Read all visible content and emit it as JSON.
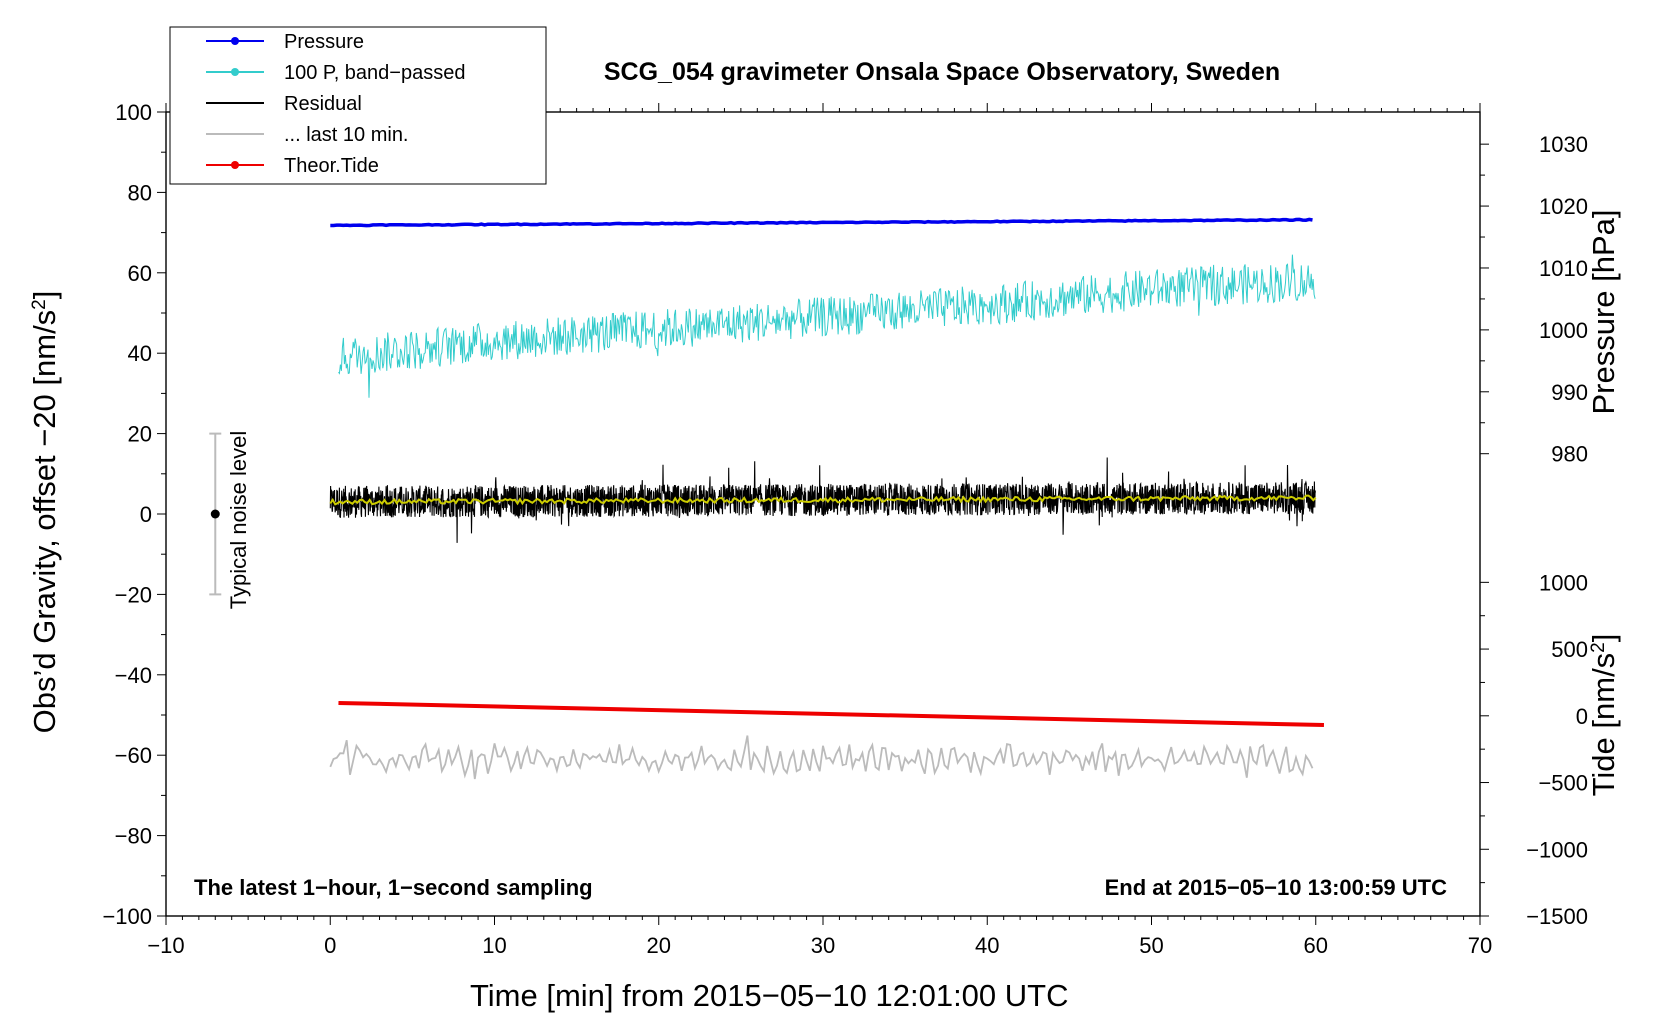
{
  "chart_data": {
    "type": "line",
    "title": "SCG_054 gravimeter Onsala Space Observatory, Sweden",
    "xlabel": "Time [min] from 2015−05−10 12:01:00 UTC",
    "ylabel_left": "Obs’d Gravity, offset −20 [nm/s",
    "ylabel_left_sup": "2",
    "ylabel_left_close": "]",
    "ylabel_pressure": "Pressure [hPa]",
    "ylabel_tide": "Tide [nm/s",
    "ylabel_tide_sup": "2",
    "ylabel_tide_close": "]",
    "xlim": [
      -10,
      70
    ],
    "ylim": [
      -100,
      100
    ],
    "x_ticks": [
      -10,
      0,
      10,
      20,
      30,
      40,
      50,
      60,
      70
    ],
    "x_tick_labels": [
      "−10",
      "0",
      "10",
      "20",
      "30",
      "40",
      "50",
      "60",
      "70"
    ],
    "y_ticks": [
      -100,
      -80,
      -60,
      -40,
      -20,
      0,
      20,
      40,
      60,
      80,
      100
    ],
    "y_tick_labels": [
      "−100",
      "−80",
      "−60",
      "−40",
      "−20",
      "0",
      "20",
      "40",
      "60",
      "80",
      "100"
    ],
    "pressure_axis": {
      "ticks": [
        980,
        990,
        1000,
        1010,
        1020,
        1030
      ],
      "tick_labels": [
        "980",
        "990",
        "1000",
        "1010",
        "1020",
        "1030"
      ],
      "left_value_at_tick": {
        "980": 15,
        "1030": 92
      }
    },
    "tide_axis": {
      "ticks": [
        -1500,
        -1000,
        -500,
        0,
        500,
        1000
      ],
      "tick_labels": [
        "−1500",
        "−1000",
        "−500",
        "0",
        "500",
        "1000"
      ],
      "left_value_at_tick": {
        "-1500": -100,
        "1000": -17
      }
    },
    "legend": {
      "location": "top-left",
      "entries": [
        {
          "label": "Pressure",
          "color": "#0000ee",
          "marker": true
        },
        {
          "label": "100 P, band−passed",
          "color": "#33cccc",
          "marker": true
        },
        {
          "label": "Residual",
          "color": "#000000",
          "marker": false
        },
        {
          "label": "... last 10 min.",
          "color": "#bbbbbb",
          "marker": false
        },
        {
          "label": "Theor.Tide",
          "color": "#ee0000",
          "marker": true
        }
      ]
    },
    "annotations": {
      "left_note": "The latest 1−hour, 1−second sampling",
      "right_note": "End at 2015−05−10 13:00:59 UTC",
      "noise_label": "Typical noise level"
    },
    "noise_bar": {
      "x": -7,
      "center": 0,
      "low": -20,
      "high": 20
    },
    "series": [
      {
        "name": "Pressure",
        "color": "#0000ee",
        "x_start": 0,
        "x_end": 60,
        "y_start": 71.8,
        "y_end": 73.2,
        "noise": 0.2
      },
      {
        "name": "100 P, band-passed",
        "color": "#33cccc",
        "x_start": 0.5,
        "x_end": 60,
        "trend": [
          [
            0.5,
            39
          ],
          [
            10,
            43
          ],
          [
            20,
            46
          ],
          [
            30,
            49
          ],
          [
            40,
            52
          ],
          [
            50,
            56
          ],
          [
            60,
            58
          ]
        ],
        "amplitude": 5
      },
      {
        "name": "Residual",
        "color": "#000000",
        "x_start": 0,
        "x_end": 60,
        "trend": [
          [
            0,
            3
          ],
          [
            30,
            3.5
          ],
          [
            60,
            4
          ]
        ],
        "amplitude": 4
      },
      {
        "name": "Residual smoothed",
        "color": "#cccc00",
        "x_start": 0,
        "x_end": 60,
        "trend": [
          [
            0,
            3
          ],
          [
            30,
            3.5
          ],
          [
            60,
            4
          ]
        ],
        "amplitude": 0.6
      },
      {
        "name": "... last 10 min.",
        "color": "#bbbbbb",
        "x_start": 0,
        "x_end": 60,
        "trend": [
          [
            0,
            -61
          ],
          [
            60,
            -61
          ]
        ],
        "amplitude": 3.5
      },
      {
        "name": "Theor.Tide",
        "color": "#ee0000",
        "x_start": 0.5,
        "x_end": 60.5,
        "y_start": -47,
        "y_end": -52.5
      }
    ]
  }
}
